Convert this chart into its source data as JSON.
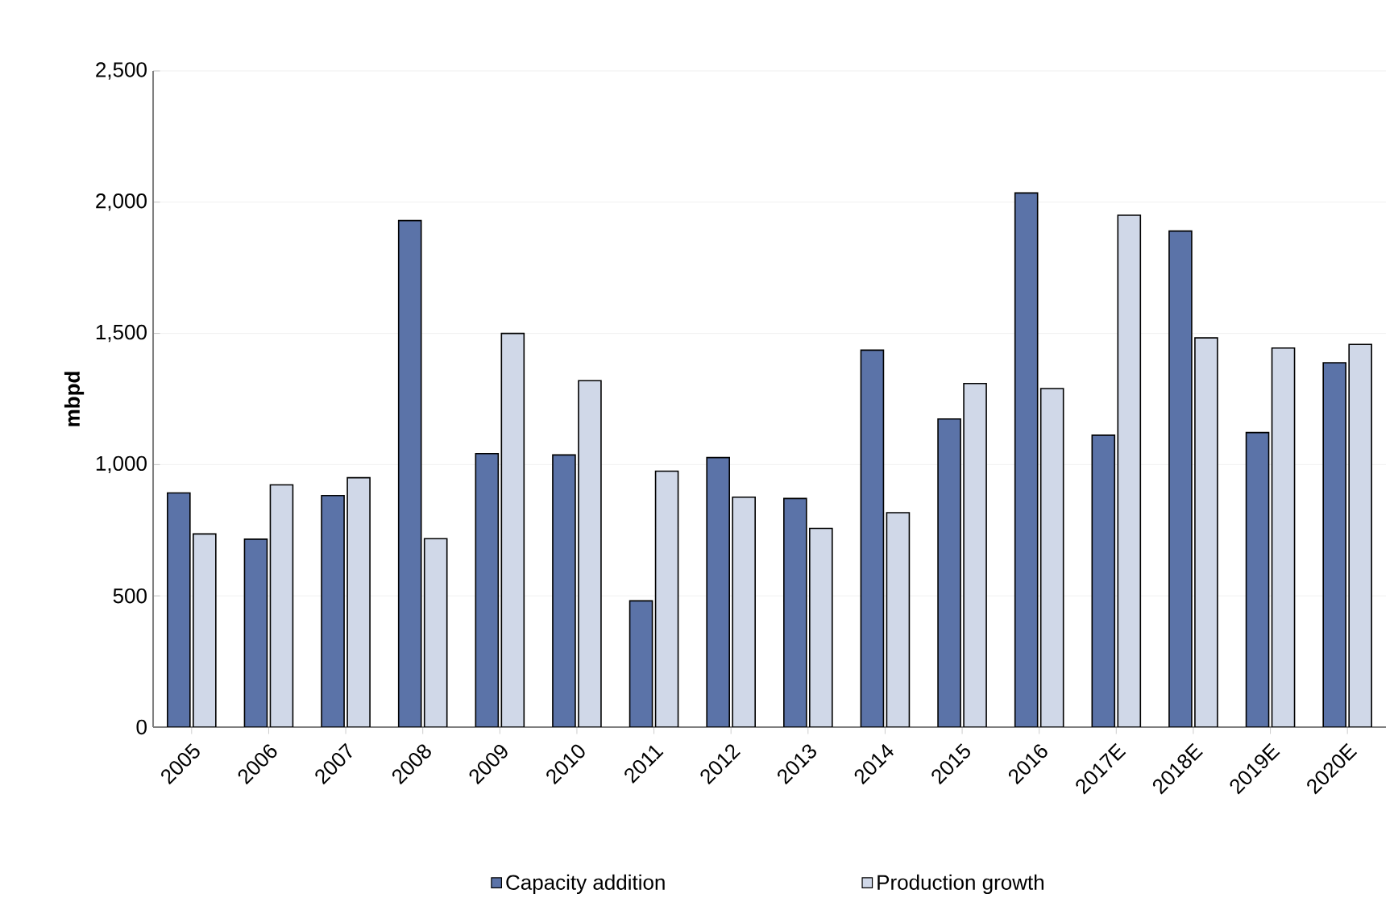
{
  "chart_data": {
    "type": "bar",
    "ylabel": "mbpd",
    "categories": [
      "2005",
      "2006",
      "2007",
      "2008",
      "2009",
      "2010",
      "2011",
      "2012",
      "2013",
      "2014",
      "2015",
      "2016",
      "2017E",
      "2018E",
      "2019E",
      "2020E"
    ],
    "series": [
      {
        "name": "Capacity addition",
        "color": "#5b73a8",
        "values": [
          892,
          716,
          882,
          1930,
          1042,
          1037,
          481,
          1027,
          871,
          1436,
          1174,
          2035,
          1112,
          1890,
          1122,
          1388
        ]
      },
      {
        "name": "Production growth",
        "color": "#d0d8e8",
        "values": [
          736,
          923,
          950,
          718,
          1500,
          1320,
          975,
          876,
          757,
          817,
          1309,
          1290,
          1950,
          1483,
          1444,
          1458
        ]
      }
    ],
    "ylim": [
      0,
      2500
    ],
    "yticks": [
      {
        "value": 0,
        "label": "0"
      },
      {
        "value": 500,
        "label": "500"
      },
      {
        "value": 1000,
        "label": "1,000"
      },
      {
        "value": 1500,
        "label": "1,500"
      },
      {
        "value": 2000,
        "label": "2,000"
      },
      {
        "value": 2500,
        "label": "2,500"
      }
    ],
    "grid": "y",
    "legend": "bottom"
  }
}
